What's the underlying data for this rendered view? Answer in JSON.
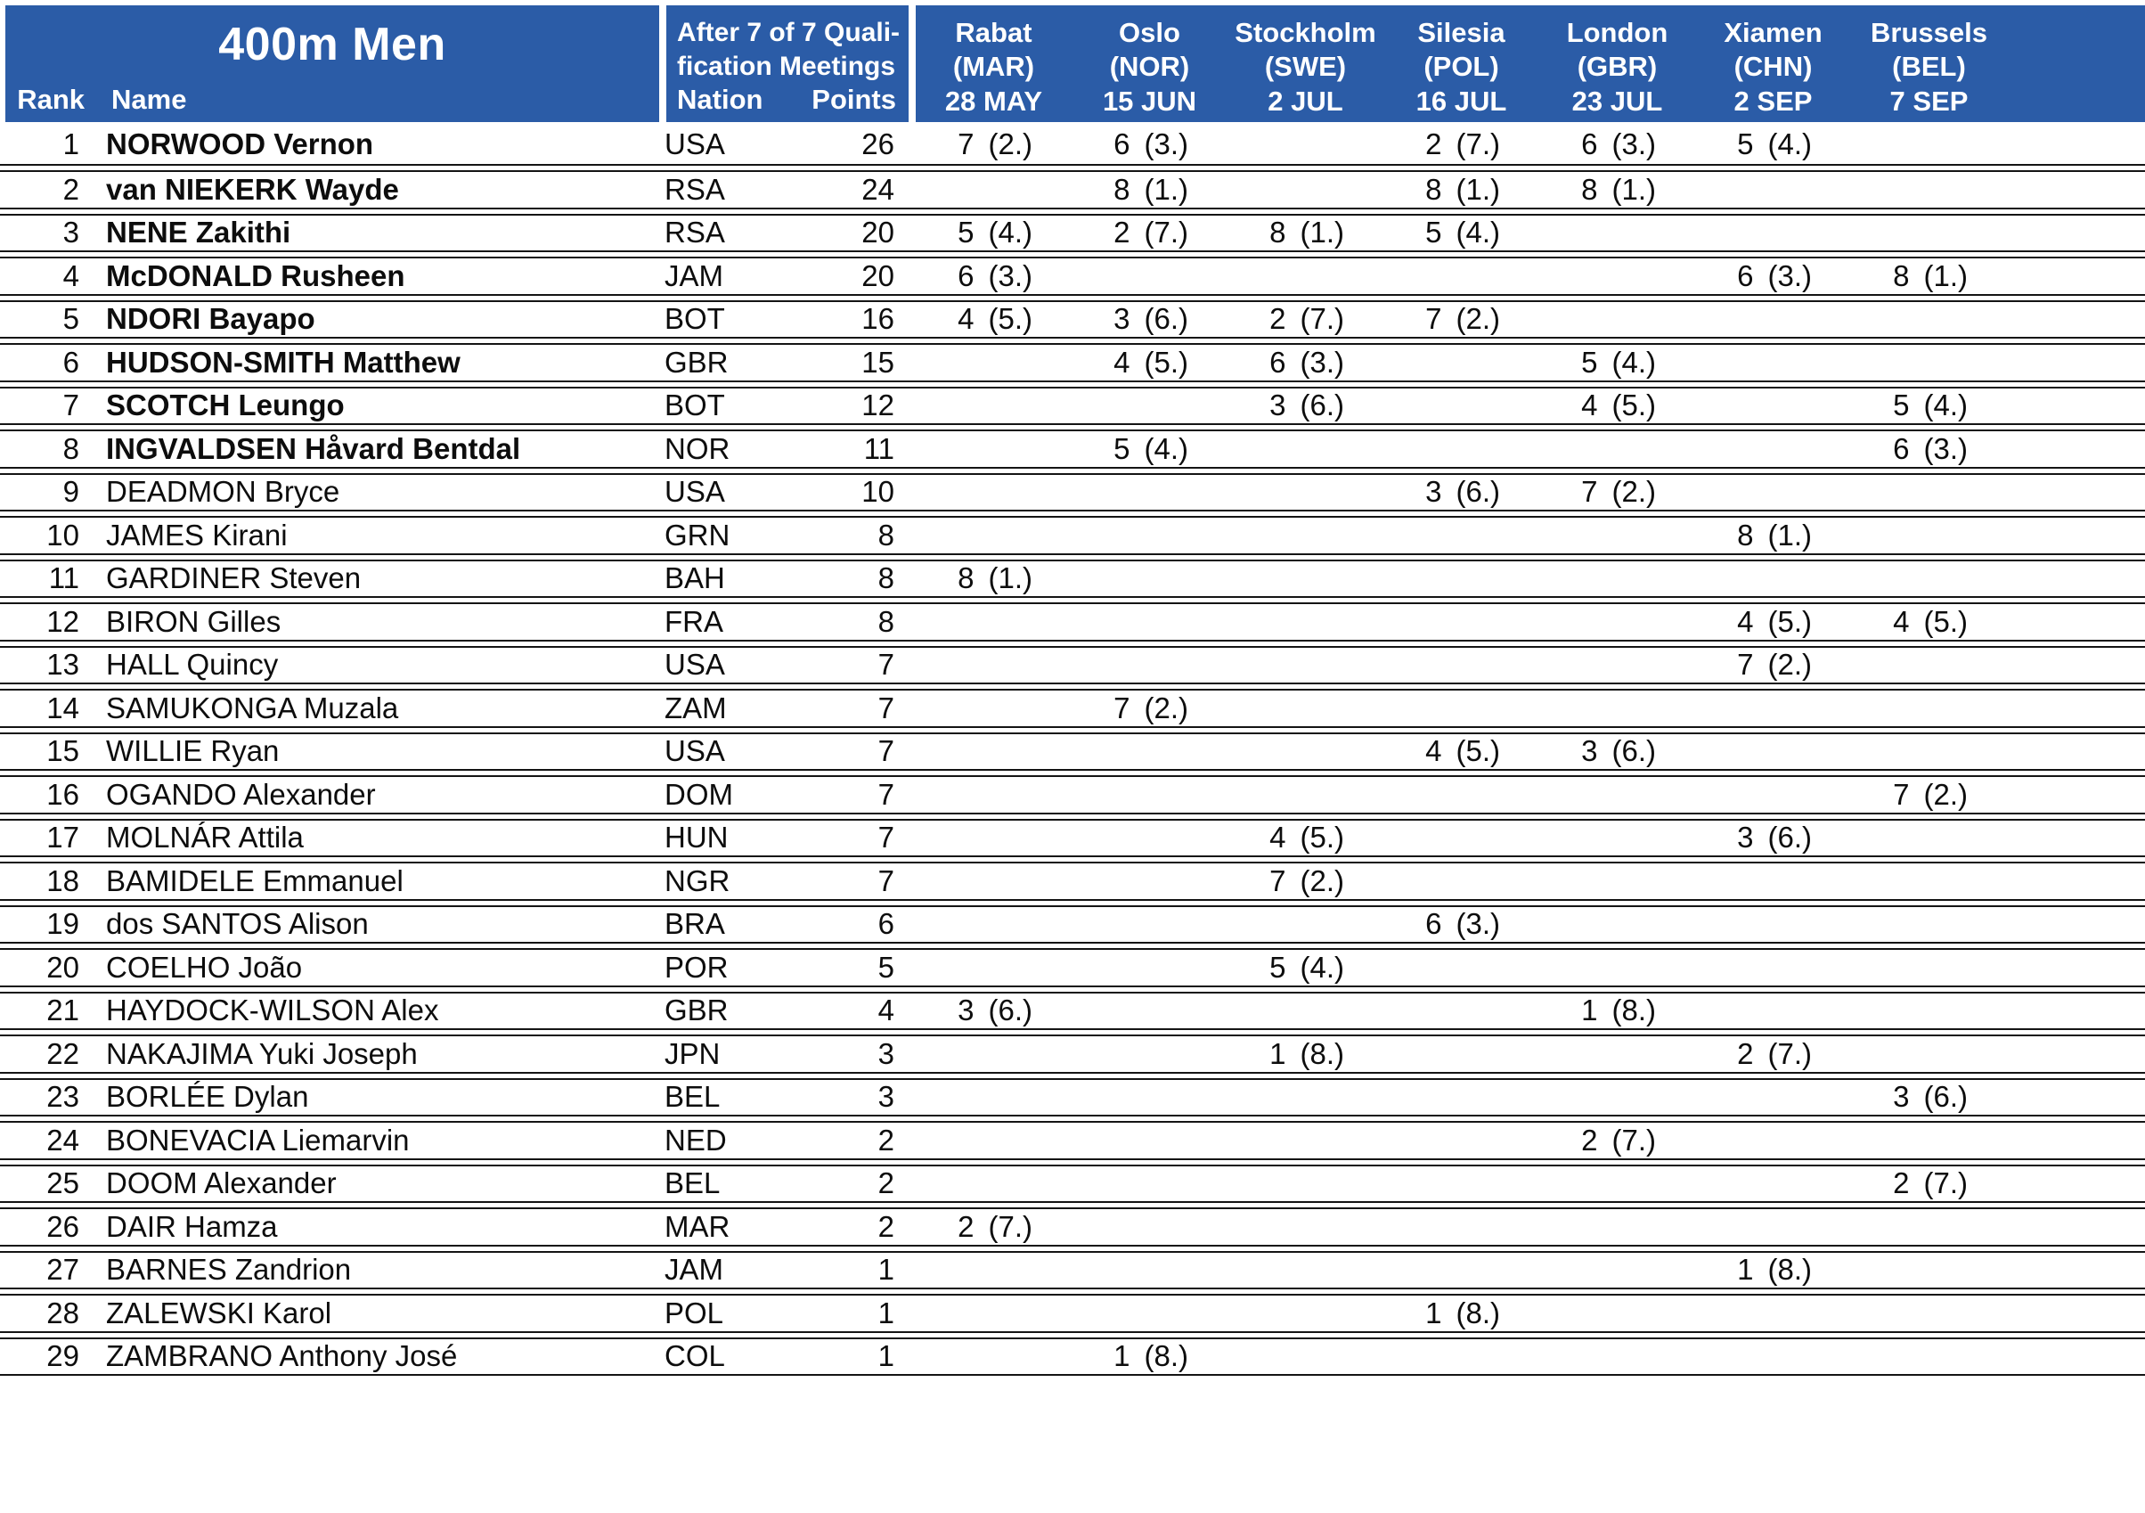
{
  "header": {
    "title": "400m Men",
    "qualification_note": {
      "line1": "After 7 of 7 Quali-",
      "line2": "fication Meetings"
    },
    "columns": {
      "rank": "Rank",
      "name": "Name",
      "nation": "Nation",
      "points": "Points"
    },
    "meetings": [
      {
        "city": "Rabat",
        "country": "(MAR)",
        "date": "28 MAY"
      },
      {
        "city": "Oslo",
        "country": "(NOR)",
        "date": "15 JUN"
      },
      {
        "city": "Stockholm",
        "country": "(SWE)",
        "date": "2 JUL"
      },
      {
        "city": "Silesia",
        "country": "(POL)",
        "date": "16 JUL"
      },
      {
        "city": "London",
        "country": "(GBR)",
        "date": "23 JUL"
      },
      {
        "city": "Xiamen",
        "country": "(CHN)",
        "date": "2 SEP"
      },
      {
        "city": "Brussels",
        "country": "(BEL)",
        "date": "7 SEP"
      }
    ]
  },
  "colors": {
    "header_bg": "#2b5ca7",
    "header_text": "#ffffff",
    "row_border": "#141414",
    "body_text": "#0d0d0d"
  },
  "rows": [
    {
      "rank": 1,
      "name": "NORWOOD Vernon",
      "bold": true,
      "nation": "USA",
      "points": 26,
      "results": [
        {
          "points": "7",
          "place": "(2.)"
        },
        {
          "points": "6",
          "place": "(3.)"
        },
        null,
        {
          "points": "2",
          "place": "(7.)"
        },
        {
          "points": "6",
          "place": "(3.)"
        },
        {
          "points": "5",
          "place": "(4.)"
        },
        null
      ]
    },
    {
      "rank": 2,
      "name": "van NIEKERK Wayde",
      "bold": true,
      "nation": "RSA",
      "points": 24,
      "results": [
        null,
        {
          "points": "8",
          "place": "(1.)"
        },
        null,
        {
          "points": "8",
          "place": "(1.)"
        },
        {
          "points": "8",
          "place": "(1.)"
        },
        null,
        null
      ]
    },
    {
      "rank": 3,
      "name": "NENE Zakithi",
      "bold": true,
      "nation": "RSA",
      "points": 20,
      "results": [
        {
          "points": "5",
          "place": "(4.)"
        },
        {
          "points": "2",
          "place": "(7.)"
        },
        {
          "points": "8",
          "place": "(1.)"
        },
        {
          "points": "5",
          "place": "(4.)"
        },
        null,
        null,
        null
      ]
    },
    {
      "rank": 4,
      "name": "McDONALD Rusheen",
      "bold": true,
      "nation": "JAM",
      "points": 20,
      "results": [
        {
          "points": "6",
          "place": "(3.)"
        },
        null,
        null,
        null,
        null,
        {
          "points": "6",
          "place": "(3.)"
        },
        {
          "points": "8",
          "place": "(1.)"
        }
      ]
    },
    {
      "rank": 5,
      "name": "NDORI Bayapo",
      "bold": true,
      "nation": "BOT",
      "points": 16,
      "results": [
        {
          "points": "4",
          "place": "(5.)"
        },
        {
          "points": "3",
          "place": "(6.)"
        },
        {
          "points": "2",
          "place": "(7.)"
        },
        {
          "points": "7",
          "place": "(2.)"
        },
        null,
        null,
        null
      ]
    },
    {
      "rank": 6,
      "name": "HUDSON-SMITH Matthew",
      "bold": true,
      "nation": "GBR",
      "points": 15,
      "results": [
        null,
        {
          "points": "4",
          "place": "(5.)"
        },
        {
          "points": "6",
          "place": "(3.)"
        },
        null,
        {
          "points": "5",
          "place": "(4.)"
        },
        null,
        null
      ]
    },
    {
      "rank": 7,
      "name": "SCOTCH Leungo",
      "bold": true,
      "nation": "BOT",
      "points": 12,
      "results": [
        null,
        null,
        {
          "points": "3",
          "place": "(6.)"
        },
        null,
        {
          "points": "4",
          "place": "(5.)"
        },
        null,
        {
          "points": "5",
          "place": "(4.)"
        }
      ]
    },
    {
      "rank": 8,
      "name": "INGVALDSEN Håvard Bentdal",
      "bold": true,
      "nation": "NOR",
      "points": 11,
      "results": [
        null,
        {
          "points": "5",
          "place": "(4.)"
        },
        null,
        null,
        null,
        null,
        {
          "points": "6",
          "place": "(3.)"
        }
      ]
    },
    {
      "rank": 9,
      "name": "DEADMON Bryce",
      "bold": false,
      "nation": "USA",
      "points": 10,
      "results": [
        null,
        null,
        null,
        {
          "points": "3",
          "place": "(6.)"
        },
        {
          "points": "7",
          "place": "(2.)"
        },
        null,
        null
      ]
    },
    {
      "rank": 10,
      "name": "JAMES Kirani",
      "bold": false,
      "nation": "GRN",
      "points": 8,
      "results": [
        null,
        null,
        null,
        null,
        null,
        {
          "points": "8",
          "place": "(1.)"
        },
        null
      ]
    },
    {
      "rank": 11,
      "name": "GARDINER Steven",
      "bold": false,
      "nation": "BAH",
      "points": 8,
      "results": [
        {
          "points": "8",
          "place": "(1.)"
        },
        null,
        null,
        null,
        null,
        null,
        null
      ]
    },
    {
      "rank": 12,
      "name": "BIRON Gilles",
      "bold": false,
      "nation": "FRA",
      "points": 8,
      "results": [
        null,
        null,
        null,
        null,
        null,
        {
          "points": "4",
          "place": "(5.)"
        },
        {
          "points": "4",
          "place": "(5.)"
        }
      ]
    },
    {
      "rank": 13,
      "name": "HALL Quincy",
      "bold": false,
      "nation": "USA",
      "points": 7,
      "results": [
        null,
        null,
        null,
        null,
        null,
        {
          "points": "7",
          "place": "(2.)"
        },
        null
      ]
    },
    {
      "rank": 14,
      "name": "SAMUKONGA Muzala",
      "bold": false,
      "nation": "ZAM",
      "points": 7,
      "results": [
        null,
        {
          "points": "7",
          "place": "(2.)"
        },
        null,
        null,
        null,
        null,
        null
      ]
    },
    {
      "rank": 15,
      "name": "WILLIE Ryan",
      "bold": false,
      "nation": "USA",
      "points": 7,
      "results": [
        null,
        null,
        null,
        {
          "points": "4",
          "place": "(5.)"
        },
        {
          "points": "3",
          "place": "(6.)"
        },
        null,
        null
      ]
    },
    {
      "rank": 16,
      "name": "OGANDO Alexander",
      "bold": false,
      "nation": "DOM",
      "points": 7,
      "results": [
        null,
        null,
        null,
        null,
        null,
        null,
        {
          "points": "7",
          "place": "(2.)"
        }
      ]
    },
    {
      "rank": 17,
      "name": "MOLNÁR Attila",
      "bold": false,
      "nation": "HUN",
      "points": 7,
      "results": [
        null,
        null,
        {
          "points": "4",
          "place": "(5.)"
        },
        null,
        null,
        {
          "points": "3",
          "place": "(6.)"
        },
        null
      ]
    },
    {
      "rank": 18,
      "name": "BAMIDELE Emmanuel",
      "bold": false,
      "nation": "NGR",
      "points": 7,
      "results": [
        null,
        null,
        {
          "points": "7",
          "place": "(2.)"
        },
        null,
        null,
        null,
        null
      ]
    },
    {
      "rank": 19,
      "name": "dos SANTOS Alison",
      "bold": false,
      "nation": "BRA",
      "points": 6,
      "results": [
        null,
        null,
        null,
        {
          "points": "6",
          "place": "(3.)"
        },
        null,
        null,
        null
      ]
    },
    {
      "rank": 20,
      "name": "COELHO João",
      "bold": false,
      "nation": "POR",
      "points": 5,
      "results": [
        null,
        null,
        {
          "points": "5",
          "place": "(4.)"
        },
        null,
        null,
        null,
        null
      ]
    },
    {
      "rank": 21,
      "name": "HAYDOCK-WILSON Alex",
      "bold": false,
      "nation": "GBR",
      "points": 4,
      "results": [
        {
          "points": "3",
          "place": "(6.)"
        },
        null,
        null,
        null,
        {
          "points": "1",
          "place": "(8.)"
        },
        null,
        null
      ]
    },
    {
      "rank": 22,
      "name": "NAKAJIMA Yuki Joseph",
      "bold": false,
      "nation": "JPN",
      "points": 3,
      "results": [
        null,
        null,
        {
          "points": "1",
          "place": "(8.)"
        },
        null,
        null,
        {
          "points": "2",
          "place": "(7.)"
        },
        null
      ]
    },
    {
      "rank": 23,
      "name": "BORLÉE Dylan",
      "bold": false,
      "nation": "BEL",
      "points": 3,
      "results": [
        null,
        null,
        null,
        null,
        null,
        null,
        {
          "points": "3",
          "place": "(6.)"
        }
      ]
    },
    {
      "rank": 24,
      "name": "BONEVACIA Liemarvin",
      "bold": false,
      "nation": "NED",
      "points": 2,
      "results": [
        null,
        null,
        null,
        null,
        {
          "points": "2",
          "place": "(7.)"
        },
        null,
        null
      ]
    },
    {
      "rank": 25,
      "name": "DOOM Alexander",
      "bold": false,
      "nation": "BEL",
      "points": 2,
      "results": [
        null,
        null,
        null,
        null,
        null,
        null,
        {
          "points": "2",
          "place": "(7.)"
        }
      ]
    },
    {
      "rank": 26,
      "name": "DAIR Hamza",
      "bold": false,
      "nation": "MAR",
      "points": 2,
      "results": [
        {
          "points": "2",
          "place": "(7.)"
        },
        null,
        null,
        null,
        null,
        null,
        null
      ]
    },
    {
      "rank": 27,
      "name": "BARNES Zandrion",
      "bold": false,
      "nation": "JAM",
      "points": 1,
      "results": [
        null,
        null,
        null,
        null,
        null,
        {
          "points": "1",
          "place": "(8.)"
        },
        null
      ]
    },
    {
      "rank": 28,
      "name": "ZALEWSKI Karol",
      "bold": false,
      "nation": "POL",
      "points": 1,
      "results": [
        null,
        null,
        null,
        {
          "points": "1",
          "place": "(8.)"
        },
        null,
        null,
        null
      ]
    },
    {
      "rank": 29,
      "name": "ZAMBRANO Anthony José",
      "bold": false,
      "nation": "COL",
      "points": 1,
      "results": [
        null,
        {
          "points": "1",
          "place": "(8.)"
        },
        null,
        null,
        null,
        null,
        null
      ]
    }
  ]
}
